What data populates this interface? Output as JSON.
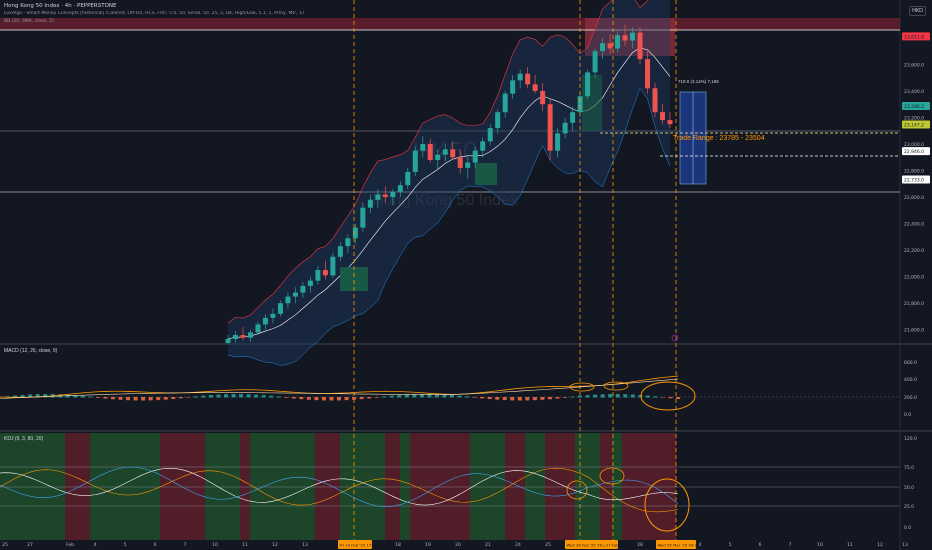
{
  "header": {
    "symbol_line": "Hong Kong 50 Index · 4h · PEPPERSTONE",
    "indicator_line": "LuxAlgo - Smart Money Concepts [historical] (Colored, Off-On, HCS, Fmr, 5.0, 50, Small, 50, 25, 5, Dk, High/Low, 5.1, 1, Prmy, Mtr, 1,000, 1000)",
    "bb_line": "BB (20, SMA, close, 2)",
    "currency": "HKD"
  },
  "panes": {
    "macd_label": "MACD (12, 26, close, 9)",
    "rsi_label": "KDJ (9, 3, 80, 20)"
  },
  "colors": {
    "bull": "#26a69a",
    "bear": "#ef5350",
    "bb_line": "#f23645",
    "bb_fill": "#1e3a5f",
    "trade_box": "#1e3a8a",
    "annotation": "#ff9800",
    "premium_zone": "#8b2f3f"
  },
  "annotations": {
    "watermark_symbol": "HK50",
    "watermark_name": "Hong Kong 50 Index",
    "trade_range": "Trade Range : 23785 - 23504",
    "measure_label": "719.0 (3.14%) 7,198"
  },
  "price_axis": {
    "labels": [
      "23,800.0",
      "23,600.0",
      "23,400.0",
      "23,200.0",
      "23,000.0",
      "22,800.0",
      "22,600.0",
      "22,400.0",
      "22,200.0",
      "22,000.0",
      "21,800.0",
      "21,600.0"
    ],
    "badges": [
      "23,811.8",
      "23,286.2",
      "23,147.2",
      "22,946.0",
      "22,733.0"
    ]
  },
  "macd_axis": {
    "labels": [
      "600.0",
      "400.0",
      "200.0",
      "0.0",
      "-200.0"
    ]
  },
  "rsi_axis": {
    "labels": [
      "120.0",
      "75.0",
      "50.0",
      "25.0",
      "0.0"
    ]
  },
  "time_axis": {
    "labels": [
      "25",
      "27",
      "Feb",
      "4",
      "5",
      "6",
      "7",
      "10",
      "11",
      "12",
      "13",
      "17",
      "18",
      "19",
      "20",
      "21",
      "24",
      "25",
      "26",
      "27",
      "28",
      "4",
      "5",
      "6",
      "7",
      "10",
      "11",
      "12",
      "13"
    ],
    "highlights": [
      "Fri 14 Feb '25  17:00",
      "Wed 26 Feb '25",
      "Thu 27 Feb '25  09:00",
      "Wed 05 Mar '25  09:00"
    ]
  },
  "chart_data": {
    "type": "candlestick",
    "title": "Hong Kong 50 Index",
    "timeframe": "4h",
    "price_range": [
      21500,
      23950
    ],
    "candles_ohlc": [
      [
        21500,
        21560,
        21490,
        21530
      ],
      [
        21530,
        21590,
        21500,
        21560
      ],
      [
        21560,
        21620,
        21520,
        21540
      ],
      [
        21540,
        21600,
        21510,
        21580
      ],
      [
        21580,
        21660,
        21560,
        21640
      ],
      [
        21640,
        21720,
        21600,
        21690
      ],
      [
        21690,
        21760,
        21650,
        21720
      ],
      [
        21720,
        21820,
        21700,
        21800
      ],
      [
        21800,
        21880,
        21760,
        21850
      ],
      [
        21850,
        21920,
        21800,
        21880
      ],
      [
        21880,
        21960,
        21840,
        21930
      ],
      [
        21930,
        22000,
        21880,
        21970
      ],
      [
        21970,
        22080,
        21940,
        22050
      ],
      [
        22050,
        22120,
        21980,
        22010
      ],
      [
        22010,
        22180,
        21990,
        22150
      ],
      [
        22150,
        22260,
        22120,
        22230
      ],
      [
        22230,
        22320,
        22180,
        22290
      ],
      [
        22290,
        22400,
        22250,
        22370
      ],
      [
        22370,
        22560,
        22340,
        22520
      ],
      [
        22520,
        22620,
        22480,
        22580
      ],
      [
        22580,
        22660,
        22520,
        22620
      ],
      [
        22620,
        22680,
        22560,
        22600
      ],
      [
        22600,
        22660,
        22540,
        22640
      ],
      [
        22640,
        22720,
        22600,
        22690
      ],
      [
        22690,
        22820,
        22660,
        22790
      ],
      [
        22790,
        22980,
        22760,
        22950
      ],
      [
        22950,
        23060,
        22900,
        23000
      ],
      [
        23000,
        23040,
        22860,
        22880
      ],
      [
        22880,
        22960,
        22800,
        22920
      ],
      [
        22920,
        23000,
        22870,
        22960
      ],
      [
        22960,
        23020,
        22880,
        22900
      ],
      [
        22900,
        22960,
        22780,
        22820
      ],
      [
        22820,
        22900,
        22740,
        22860
      ],
      [
        22860,
        22980,
        22820,
        22950
      ],
      [
        22950,
        23050,
        22900,
        23020
      ],
      [
        23020,
        23150,
        22990,
        23120
      ],
      [
        23120,
        23260,
        23080,
        23240
      ],
      [
        23240,
        23400,
        23200,
        23380
      ],
      [
        23380,
        23520,
        23340,
        23480
      ],
      [
        23480,
        23560,
        23420,
        23530
      ],
      [
        23530,
        23580,
        23420,
        23450
      ],
      [
        23450,
        23520,
        23380,
        23400
      ],
      [
        23400,
        23460,
        23250,
        23300
      ],
      [
        23300,
        23340,
        22880,
        22950
      ],
      [
        22950,
        23120,
        22900,
        23080
      ],
      [
        23080,
        23200,
        23040,
        23160
      ],
      [
        23160,
        23280,
        23100,
        23240
      ],
      [
        23240,
        23380,
        23200,
        23360
      ],
      [
        23360,
        23560,
        23340,
        23540
      ],
      [
        23540,
        23720,
        23500,
        23700
      ],
      [
        23700,
        23800,
        23640,
        23760
      ],
      [
        23760,
        23830,
        23680,
        23720
      ],
      [
        23720,
        23860,
        23690,
        23820
      ],
      [
        23820,
        23900,
        23740,
        23780
      ],
      [
        23780,
        23880,
        23720,
        23840
      ],
      [
        23840,
        23880,
        23600,
        23640
      ],
      [
        23640,
        23700,
        23380,
        23420
      ],
      [
        23420,
        23460,
        23200,
        23240
      ],
      [
        23240,
        23300,
        23150,
        23180
      ],
      [
        23180,
        23240,
        23120,
        23150
      ]
    ],
    "macd_last": 0.0,
    "kdj_levels": [
      75,
      50,
      25
    ]
  }
}
